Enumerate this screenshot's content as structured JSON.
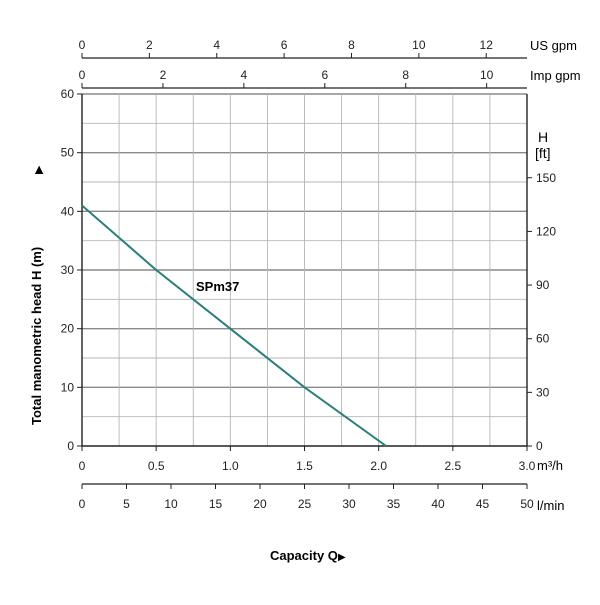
{
  "chart_data": {
    "type": "line",
    "ylabel": "Total manometric head H (m)",
    "xlabel": "Capacity Q",
    "x_unit_m3h": "m³/h",
    "x_unit_lmin": "l/min",
    "top_unit_usgpm": "US gpm",
    "top_unit_impgpm": "Imp gpm",
    "right_unit_line1": "H",
    "right_unit_line2": "[ft]",
    "xlim": [
      0,
      3.0
    ],
    "ylim": [
      0,
      60
    ],
    "grid": true,
    "x_ticks_m3h": [
      "0",
      "0.5",
      "1.0",
      "1.5",
      "2.0",
      "2.5",
      "3.0"
    ],
    "x_ticks_lmin": [
      "0",
      "5",
      "10",
      "15",
      "20",
      "25",
      "30",
      "35",
      "40",
      "45",
      "50"
    ],
    "top_ticks_usgpm": [
      "0",
      "2",
      "4",
      "6",
      "8",
      "10",
      "12"
    ],
    "top_ticks_impgpm": [
      "0",
      "2",
      "4",
      "6",
      "8",
      "10"
    ],
    "y_ticks_m": [
      "0",
      "10",
      "20",
      "30",
      "40",
      "50",
      "60"
    ],
    "y_ticks_ft": [
      "0",
      "30",
      "60",
      "90",
      "120",
      "150"
    ],
    "series": [
      {
        "name": "SPm37",
        "color": "#2a7f7a",
        "x": [
          0,
          0.5,
          1.0,
          1.5,
          2.05
        ],
        "y": [
          41,
          30,
          20,
          10,
          0
        ]
      }
    ]
  }
}
